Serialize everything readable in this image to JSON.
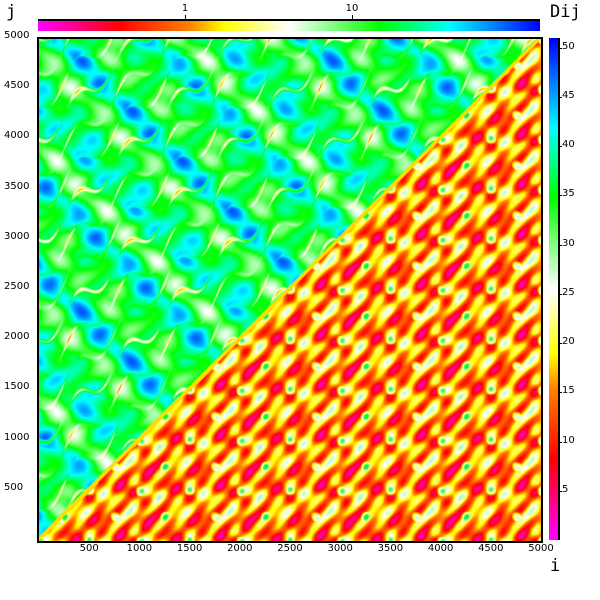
{
  "chart_data": {
    "type": "heatmap",
    "title": "",
    "xlabel": "i",
    "ylabel": "j",
    "xlim": [
      0,
      5000
    ],
    "ylim": [
      0,
      5000
    ],
    "x_ticks": [
      "500",
      "1000",
      "1500",
      "2000",
      "2500",
      "3000",
      "3500",
      "4000",
      "4500",
      "5000"
    ],
    "y_ticks": [
      "500",
      "1000",
      "1500",
      "2000",
      "2500",
      "3000",
      "3500",
      "4000",
      "4500",
      "5000"
    ],
    "upper_triangle": {
      "colorbar_position": "top",
      "colorbar_scale": "log",
      "colorbar_ticks": [
        "1",
        "10"
      ],
      "dominant_colors": [
        "#00c8ff",
        "#00e060",
        "#0030ff"
      ]
    },
    "lower_triangle": {
      "colorbar_position": "right",
      "colorbar_label": "Dij",
      "colorbar_range": [
        0,
        51
      ],
      "colorbar_ticks": [
        "5",
        "10",
        "15",
        "20",
        "25",
        "30",
        "35",
        "40",
        "45",
        "50"
      ],
      "dominant_colors": [
        "#ff0080",
        "#ffff00",
        "#ffffff"
      ]
    },
    "palette": [
      "#ff00ff",
      "#ff0000",
      "#ff8000",
      "#ffff00",
      "#ffffff",
      "#00ff00",
      "#00ffff",
      "#0000ff"
    ],
    "grid": false
  }
}
